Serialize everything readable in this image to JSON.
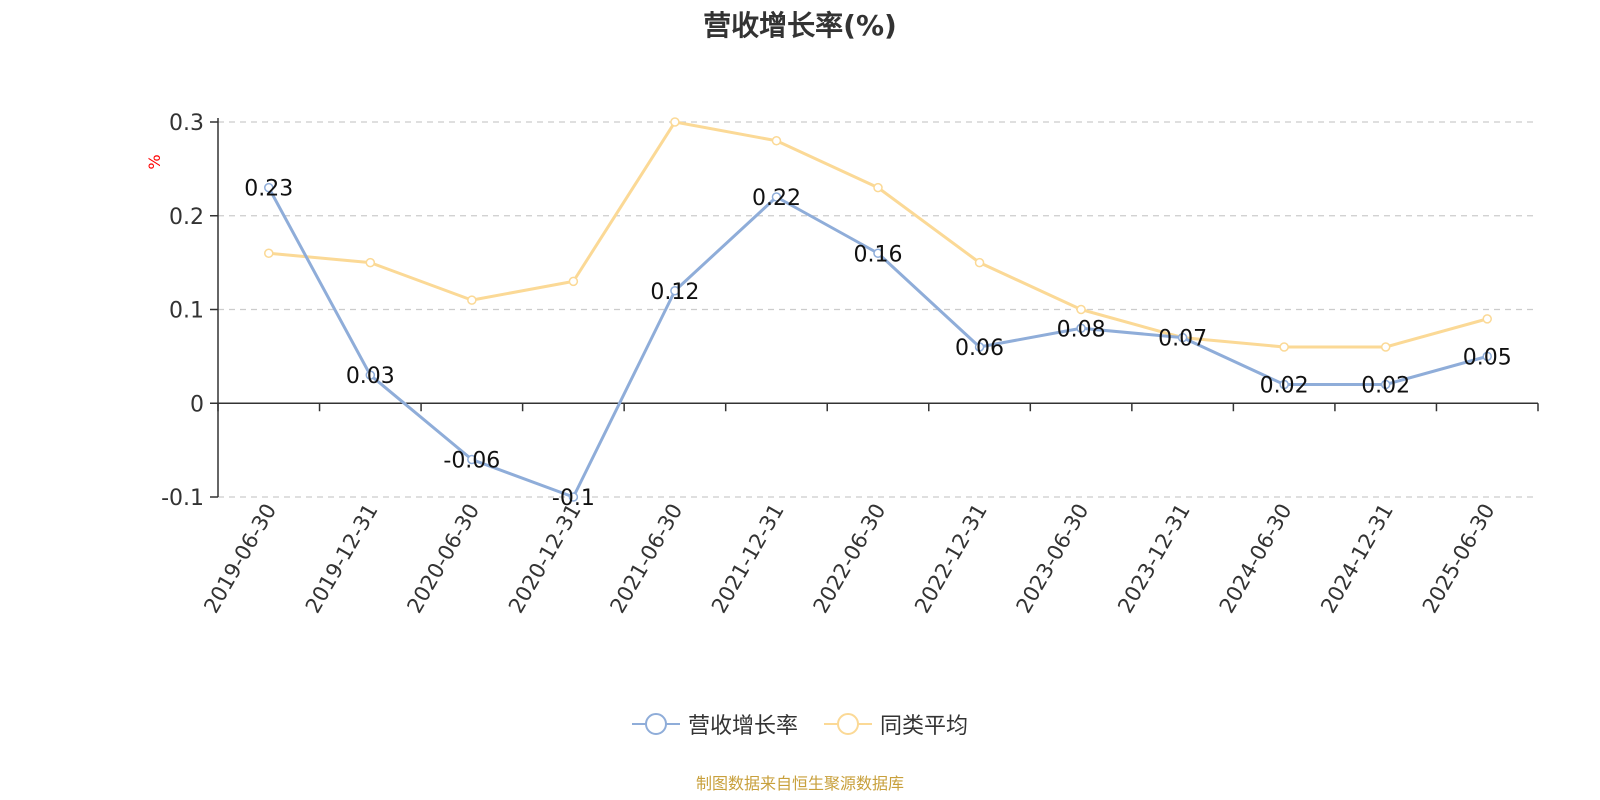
{
  "colors": {
    "series1": "#8fadd9",
    "series2": "#fbd996",
    "axis": "#333333",
    "grid": "#cccccc",
    "ylabel": "#ff0000",
    "source": "#c8a03c"
  },
  "chart_data": {
    "type": "line",
    "title": "营收增长率(%)",
    "ylabel": "%",
    "categories": [
      "2019-06-30",
      "2019-12-31",
      "2020-06-30",
      "2020-12-31",
      "2021-06-30",
      "2021-12-31",
      "2022-06-30",
      "2022-12-31",
      "2023-06-30",
      "2023-12-31",
      "2024-06-30",
      "2024-12-31",
      "2025-06-30"
    ],
    "yticks": [
      "0.3",
      "0.2",
      "0.1",
      "0",
      "-0.1"
    ],
    "ylim": [
      -0.1,
      0.3
    ],
    "grid": true,
    "legend_position": "bottom",
    "series": [
      {
        "name": "营收增长率",
        "values": [
          0.23,
          0.03,
          -0.06,
          -0.1,
          0.12,
          0.22,
          0.16,
          0.06,
          0.08,
          0.07,
          0.02,
          0.02,
          0.05
        ],
        "labels": [
          "0.23",
          "0.03",
          "-0.06",
          "-0.1",
          "0.12",
          "0.22",
          "0.16",
          "0.06",
          "0.08",
          "0.07",
          "0.02",
          "0.02",
          "0.05"
        ]
      },
      {
        "name": "同类平均",
        "values": [
          0.16,
          0.15,
          0.11,
          0.13,
          0.3,
          0.28,
          0.23,
          0.15,
          0.1,
          0.07,
          0.06,
          0.06,
          0.09
        ]
      }
    ]
  },
  "source_note": "制图数据来自恒生聚源数据库"
}
